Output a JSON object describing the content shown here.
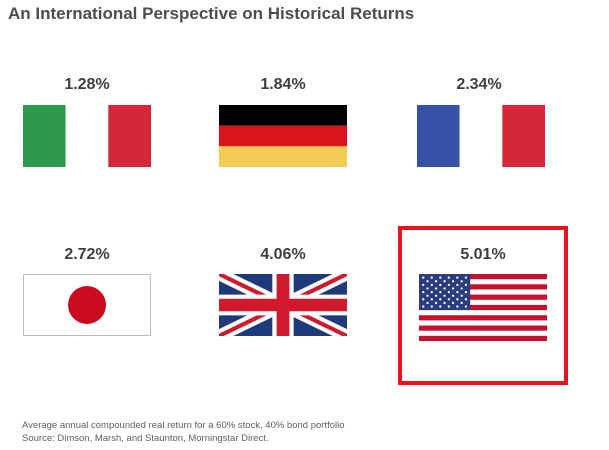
{
  "title": "An International Perspective on Historical Returns",
  "countries": [
    {
      "flag": "italy-flag",
      "return": "1.28%"
    },
    {
      "flag": "germany-flag",
      "return": "1.84%"
    },
    {
      "flag": "france-flag",
      "return": "2.34%"
    },
    {
      "flag": "japan-flag",
      "return": "2.72%"
    },
    {
      "flag": "uk-flag",
      "return": "4.06%"
    },
    {
      "flag": "usa-flag",
      "return": "5.01%",
      "highlighted": true
    }
  ],
  "colors": {
    "highlight_border": "#e8141b",
    "title_text": "#4d4d4d"
  },
  "footnote": {
    "line1": "Average annual compounded real return for a 60% stock, 40% bond portfolio",
    "line2": "Source: Dimson, Marsh, and Staunton, Morningstar Direct."
  }
}
